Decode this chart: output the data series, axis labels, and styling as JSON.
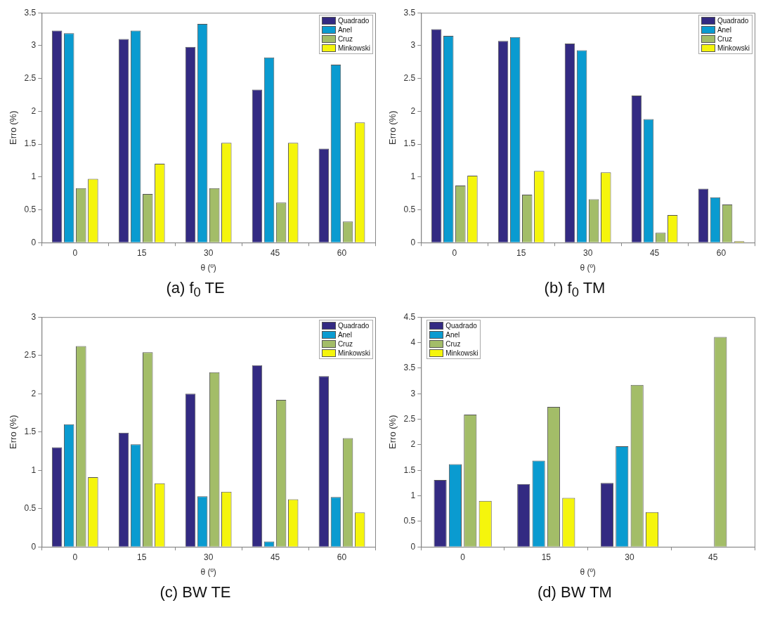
{
  "chart_data": [
    {
      "type": "bar",
      "title": "(a) f$_{0}$ TE",
      "xlabel": "θ (º)",
      "ylabel": "Erro (%)",
      "categories": [
        "0",
        "15",
        "30",
        "45",
        "60"
      ],
      "ylim": [
        0,
        3.5
      ],
      "yticks": [
        0,
        0.5,
        1,
        1.5,
        2,
        2.5,
        3,
        3.5
      ],
      "grid": false,
      "legend": "top right",
      "series": [
        {
          "name": "Quadrado",
          "color": "#332a82",
          "values": [
            3.23,
            3.1,
            2.98,
            2.33,
            1.43
          ]
        },
        {
          "name": "Anel",
          "color": "#0a9bd0",
          "values": [
            3.19,
            3.23,
            3.33,
            2.82,
            2.71
          ]
        },
        {
          "name": "Cruz",
          "color": "#a3bd68",
          "values": [
            0.83,
            0.74,
            0.83,
            0.61,
            0.32
          ]
        },
        {
          "name": "Minkowski",
          "color": "#f5f50c",
          "values": [
            0.97,
            1.2,
            1.52,
            1.52,
            1.83
          ]
        }
      ]
    },
    {
      "type": "bar",
      "title": "(b) f$_{0}$ TM",
      "xlabel": "θ (º)",
      "ylabel": "Erro (%)",
      "categories": [
        "0",
        "15",
        "30",
        "45",
        "60"
      ],
      "ylim": [
        0,
        3.5
      ],
      "yticks": [
        0,
        0.5,
        1,
        1.5,
        2,
        2.5,
        3,
        3.5
      ],
      "grid": false,
      "legend": "top right",
      "series": [
        {
          "name": "Quadrado",
          "color": "#332a82",
          "values": [
            3.25,
            3.07,
            3.03,
            2.24,
            0.82
          ]
        },
        {
          "name": "Anel",
          "color": "#0a9bd0",
          "values": [
            3.15,
            3.13,
            2.93,
            1.88,
            0.69
          ]
        },
        {
          "name": "Cruz",
          "color": "#a3bd68",
          "values": [
            0.87,
            0.73,
            0.66,
            0.15,
            0.58
          ]
        },
        {
          "name": "Minkowski",
          "color": "#f5f50c",
          "values": [
            1.02,
            1.09,
            1.07,
            0.42,
            0.02
          ]
        }
      ]
    },
    {
      "type": "bar",
      "title": "(c) BW TE",
      "xlabel": "θ (º)",
      "ylabel": "Erro (%)",
      "categories": [
        "0",
        "15",
        "30",
        "45",
        "60"
      ],
      "ylim": [
        0,
        3
      ],
      "yticks": [
        0,
        0.5,
        1,
        1.5,
        2,
        2.5,
        3
      ],
      "grid": false,
      "legend": "top right",
      "series": [
        {
          "name": "Quadrado",
          "color": "#332a82",
          "values": [
            1.3,
            1.49,
            2.0,
            2.37,
            2.23
          ]
        },
        {
          "name": "Anel",
          "color": "#0a9bd0",
          "values": [
            1.6,
            1.34,
            0.66,
            0.07,
            0.65
          ]
        },
        {
          "name": "Cruz",
          "color": "#a3bd68",
          "values": [
            2.62,
            2.54,
            2.28,
            1.92,
            1.42
          ]
        },
        {
          "name": "Minkowski",
          "color": "#f5f50c",
          "values": [
            0.91,
            0.83,
            0.72,
            0.62,
            0.45
          ]
        }
      ]
    },
    {
      "type": "bar",
      "title": "(d) BW TM",
      "xlabel": "θ (º)",
      "ylabel": "Erro (%)",
      "categories": [
        "0",
        "15",
        "30",
        "45"
      ],
      "ylim": [
        0,
        4.5
      ],
      "yticks": [
        0,
        0.5,
        1,
        1.5,
        2,
        2.5,
        3,
        3.5,
        4,
        4.5
      ],
      "grid": false,
      "legend": "top left",
      "series": [
        {
          "name": "Quadrado",
          "color": "#332a82",
          "values": [
            1.31,
            1.23,
            1.25,
            0
          ]
        },
        {
          "name": "Anel",
          "color": "#0a9bd0",
          "values": [
            1.62,
            1.69,
            1.97,
            0
          ]
        },
        {
          "name": "Cruz",
          "color": "#a3bd68",
          "values": [
            2.59,
            2.74,
            3.17,
            4.11
          ]
        },
        {
          "name": "Minkowski",
          "color": "#f5f50c",
          "values": [
            0.9,
            0.96,
            0.68,
            0
          ]
        }
      ]
    }
  ]
}
